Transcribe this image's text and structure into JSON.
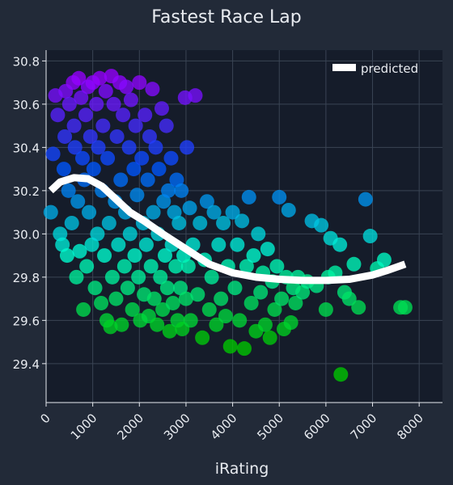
{
  "colors": {
    "page_background": "#222a38",
    "plot_background": "#151c2a",
    "grid": "#3a4454",
    "text": "#e8ebf0",
    "predicted_line": "#ffffff",
    "point_colormap": [
      "#00c800",
      "#00ffd2",
      "#0050ff",
      "#9600ff"
    ]
  },
  "chart_data": {
    "type": "scatter",
    "title": "Fastest Race Lap",
    "xlabel": "iRating",
    "ylabel": "",
    "xlim": [
      0,
      8500
    ],
    "ylim": [
      29.22,
      30.85
    ],
    "x_ticks": [
      0,
      1000,
      2000,
      3000,
      4000,
      5000,
      6000,
      7000,
      8000
    ],
    "y_ticks": [
      29.4,
      29.6,
      29.8,
      30.0,
      30.2,
      30.4,
      30.6,
      30.8
    ],
    "y_tick_labels": [
      "29.4",
      "29.6",
      "29.8",
      "30.0",
      "30.2",
      "30.4",
      "30.6",
      "30.8"
    ],
    "grid": true,
    "legend": {
      "position": "top-right",
      "entries": [
        "predicted"
      ]
    },
    "series": [
      {
        "name": "predicted",
        "kind": "line",
        "x": [
          100,
          300,
          600,
          900,
          1200,
          1500,
          1800,
          2100,
          2500,
          3000,
          3500,
          4000,
          4500,
          5000,
          5500,
          6000,
          6500,
          7000,
          7300,
          7700
        ],
        "y": [
          30.2,
          30.24,
          30.26,
          30.255,
          30.22,
          30.16,
          30.1,
          30.06,
          30.0,
          29.93,
          29.86,
          29.82,
          29.8,
          29.79,
          29.785,
          29.785,
          29.79,
          29.81,
          29.83,
          29.86
        ]
      },
      {
        "name": "",
        "kind": "scatter",
        "points": [
          [
            100,
            30.1
          ],
          [
            150,
            30.37
          ],
          [
            200,
            30.64
          ],
          [
            250,
            30.55
          ],
          [
            300,
            30.0
          ],
          [
            350,
            29.95
          ],
          [
            380,
            30.3
          ],
          [
            400,
            30.45
          ],
          [
            420,
            30.66
          ],
          [
            450,
            29.9
          ],
          [
            480,
            30.2
          ],
          [
            500,
            30.6
          ],
          [
            550,
            30.05
          ],
          [
            580,
            30.7
          ],
          [
            600,
            30.5
          ],
          [
            620,
            30.4
          ],
          [
            650,
            29.8
          ],
          [
            680,
            30.15
          ],
          [
            700,
            30.72
          ],
          [
            720,
            29.92
          ],
          [
            750,
            30.63
          ],
          [
            780,
            30.35
          ],
          [
            800,
            29.65
          ],
          [
            820,
            30.25
          ],
          [
            850,
            30.55
          ],
          [
            870,
            29.85
          ],
          [
            900,
            30.68
          ],
          [
            920,
            30.1
          ],
          [
            950,
            30.45
          ],
          [
            980,
            29.95
          ],
          [
            1000,
            30.7
          ],
          [
            1020,
            30.3
          ],
          [
            1050,
            29.75
          ],
          [
            1080,
            30.6
          ],
          [
            1100,
            30.0
          ],
          [
            1120,
            30.4
          ],
          [
            1150,
            30.72
          ],
          [
            1180,
            29.68
          ],
          [
            1200,
            30.2
          ],
          [
            1220,
            30.5
          ],
          [
            1250,
            29.9
          ],
          [
            1280,
            30.66
          ],
          [
            1300,
            29.6
          ],
          [
            1320,
            30.35
          ],
          [
            1350,
            30.05
          ],
          [
            1380,
            29.57
          ],
          [
            1400,
            30.73
          ],
          [
            1420,
            29.8
          ],
          [
            1450,
            30.6
          ],
          [
            1480,
            30.15
          ],
          [
            1500,
            29.7
          ],
          [
            1520,
            30.45
          ],
          [
            1550,
            29.95
          ],
          [
            1580,
            30.7
          ],
          [
            1600,
            30.25
          ],
          [
            1620,
            29.58
          ],
          [
            1650,
            30.55
          ],
          [
            1680,
            29.85
          ],
          [
            1700,
            30.1
          ],
          [
            1720,
            30.68
          ],
          [
            1750,
            29.75
          ],
          [
            1780,
            30.4
          ],
          [
            1800,
            30.0
          ],
          [
            1820,
            30.62
          ],
          [
            1850,
            29.65
          ],
          [
            1880,
            30.3
          ],
          [
            1900,
            29.9
          ],
          [
            1920,
            30.5
          ],
          [
            1950,
            30.18
          ],
          [
            1980,
            29.8
          ],
          [
            2000,
            30.7
          ],
          [
            2020,
            29.6
          ],
          [
            2050,
            30.35
          ],
          [
            2080,
            30.05
          ],
          [
            2100,
            29.72
          ],
          [
            2120,
            30.55
          ],
          [
            2150,
            29.95
          ],
          [
            2180,
            30.25
          ],
          [
            2200,
            29.62
          ],
          [
            2220,
            30.45
          ],
          [
            2250,
            29.85
          ],
          [
            2280,
            30.67
          ],
          [
            2300,
            30.1
          ],
          [
            2320,
            29.7
          ],
          [
            2350,
            30.4
          ],
          [
            2380,
            29.58
          ],
          [
            2400,
            30.0
          ],
          [
            2420,
            30.3
          ],
          [
            2450,
            29.8
          ],
          [
            2480,
            30.58
          ],
          [
            2500,
            29.65
          ],
          [
            2520,
            30.15
          ],
          [
            2550,
            29.9
          ],
          [
            2580,
            30.5
          ],
          [
            2600,
            29.75
          ],
          [
            2620,
            30.2
          ],
          [
            2650,
            29.55
          ],
          [
            2680,
            30.35
          ],
          [
            2700,
            29.95
          ],
          [
            2720,
            29.68
          ],
          [
            2750,
            30.1
          ],
          [
            2780,
            29.85
          ],
          [
            2800,
            30.25
          ],
          [
            2820,
            29.6
          ],
          [
            2850,
            30.05
          ],
          [
            2880,
            29.75
          ],
          [
            2900,
            30.2
          ],
          [
            2920,
            29.56
          ],
          [
            2950,
            29.9
          ],
          [
            2980,
            30.63
          ],
          [
            3000,
            29.7
          ],
          [
            3020,
            30.4
          ],
          [
            3050,
            29.85
          ],
          [
            3080,
            30.12
          ],
          [
            3100,
            29.6
          ],
          [
            3150,
            29.95
          ],
          [
            3200,
            30.64
          ],
          [
            3250,
            29.72
          ],
          [
            3300,
            30.05
          ],
          [
            3350,
            29.52
          ],
          [
            3400,
            29.88
          ],
          [
            3450,
            30.15
          ],
          [
            3500,
            29.65
          ],
          [
            3550,
            29.8
          ],
          [
            3600,
            30.1
          ],
          [
            3650,
            29.58
          ],
          [
            3700,
            29.95
          ],
          [
            3750,
            29.7
          ],
          [
            3800,
            30.05
          ],
          [
            3850,
            29.62
          ],
          [
            3900,
            29.85
          ],
          [
            3950,
            29.48
          ],
          [
            4000,
            30.1
          ],
          [
            4050,
            29.75
          ],
          [
            4100,
            29.95
          ],
          [
            4150,
            29.6
          ],
          [
            4200,
            30.06
          ],
          [
            4250,
            29.47
          ],
          [
            4300,
            29.85
          ],
          [
            4350,
            30.17
          ],
          [
            4400,
            29.68
          ],
          [
            4450,
            29.9
          ],
          [
            4500,
            29.55
          ],
          [
            4550,
            30.0
          ],
          [
            4600,
            29.73
          ],
          [
            4650,
            29.82
          ],
          [
            4700,
            29.58
          ],
          [
            4750,
            29.93
          ],
          [
            4800,
            29.52
          ],
          [
            4850,
            29.78
          ],
          [
            4900,
            29.65
          ],
          [
            4950,
            29.85
          ],
          [
            5000,
            30.17
          ],
          [
            5050,
            29.7
          ],
          [
            5100,
            29.56
          ],
          [
            5150,
            29.8
          ],
          [
            5200,
            30.11
          ],
          [
            5250,
            29.59
          ],
          [
            5300,
            29.75
          ],
          [
            5350,
            29.68
          ],
          [
            5400,
            29.8
          ],
          [
            5500,
            29.73
          ],
          [
            5600,
            29.78
          ],
          [
            5700,
            30.06
          ],
          [
            5800,
            29.76
          ],
          [
            5900,
            30.04
          ],
          [
            6000,
            29.65
          ],
          [
            6050,
            29.8
          ],
          [
            6100,
            29.98
          ],
          [
            6200,
            29.82
          ],
          [
            6300,
            29.95
          ],
          [
            6320,
            29.35
          ],
          [
            6400,
            29.73
          ],
          [
            6500,
            29.7
          ],
          [
            6600,
            29.86
          ],
          [
            6700,
            29.66
          ],
          [
            6850,
            30.16
          ],
          [
            6950,
            29.99
          ],
          [
            7100,
            29.84
          ],
          [
            7250,
            29.88
          ],
          [
            7600,
            29.66
          ],
          [
            7700,
            29.66
          ]
        ]
      }
    ]
  }
}
